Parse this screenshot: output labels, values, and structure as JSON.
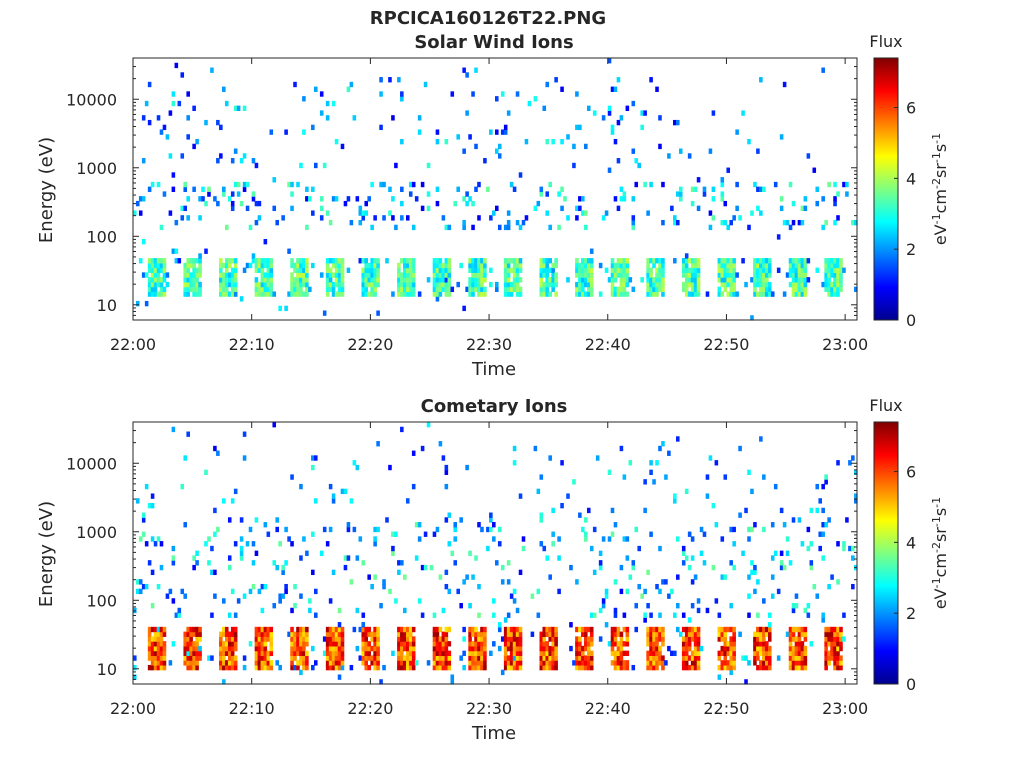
{
  "figure_title": "RPCICA160126T22.PNG",
  "chart_data": [
    {
      "type": "heatmap",
      "title": "Solar Wind Ions",
      "xlabel": "Time",
      "ylabel": "Energy (eV)",
      "x_tick_labels": [
        "22:00",
        "22:10",
        "22:20",
        "22:30",
        "22:40",
        "22:50",
        "23:00"
      ],
      "xlim_minutes": [
        0,
        61
      ],
      "x_tick_minutes": [
        0,
        10,
        20,
        30,
        40,
        50,
        60
      ],
      "y_scale": "log",
      "y_ticks": [
        10,
        100,
        1000,
        10000
      ],
      "y_tick_labels": [
        "10",
        "100",
        "1000",
        "10000"
      ],
      "ylim": [
        6,
        40000
      ],
      "colorbar": {
        "title": "Flux",
        "label": "eV-1cm-2sr-1s-1",
        "label_parts": [
          [
            "eV",
            ""
          ],
          [
            "-1",
            "sup"
          ],
          [
            "cm",
            ""
          ],
          [
            "-2",
            "sup"
          ],
          [
            "sr",
            ""
          ],
          [
            "-1",
            "sup"
          ],
          [
            "s",
            ""
          ],
          [
            "-1",
            "sup"
          ]
        ],
        "ticks": [
          0,
          2,
          4,
          6
        ],
        "tick_labels": [
          "0",
          "2",
          "4",
          "6"
        ],
        "range": [
          0,
          7.4
        ],
        "colormap": "jet"
      },
      "pattern": {
        "seed": 7,
        "low_band": [
          13,
          45
        ],
        "low_flux": [
          2.3,
          4.2
        ],
        "mid_band": [
          120,
          600
        ],
        "high_band": [
          1000,
          20000
        ],
        "high_cutoff_minute": 47,
        "density": 0.55
      },
      "x_grid": false,
      "y_grid": false
    },
    {
      "type": "heatmap",
      "title": "Cometary Ions",
      "xlabel": "Time",
      "ylabel": "Energy (eV)",
      "x_tick_labels": [
        "22:00",
        "22:10",
        "22:20",
        "22:30",
        "22:40",
        "22:50",
        "23:00"
      ],
      "xlim_minutes": [
        0,
        61
      ],
      "x_tick_minutes": [
        0,
        10,
        20,
        30,
        40,
        50,
        60
      ],
      "y_scale": "log",
      "y_ticks": [
        10,
        100,
        1000,
        10000
      ],
      "y_tick_labels": [
        "10",
        "100",
        "1000",
        "10000"
      ],
      "ylim": [
        6,
        40000
      ],
      "colorbar": {
        "title": "Flux",
        "label": "eV-1cm-2sr-1s-1",
        "label_parts": [
          [
            "eV",
            ""
          ],
          [
            "-1",
            "sup"
          ],
          [
            "cm",
            ""
          ],
          [
            "-2",
            "sup"
          ],
          [
            "sr",
            ""
          ],
          [
            "-1",
            "sup"
          ],
          [
            "s",
            ""
          ],
          [
            "-1",
            "sup"
          ]
        ],
        "ticks": [
          0,
          2,
          4,
          6
        ],
        "tick_labels": [
          "0",
          "2",
          "4",
          "6"
        ],
        "range": [
          0,
          7.4
        ],
        "colormap": "jet"
      },
      "pattern": {
        "seed": 19,
        "low_band": [
          9,
          42
        ],
        "low_flux": [
          4.8,
          7.2
        ],
        "mid_band": [
          60,
          1500
        ],
        "high_band": [
          1500,
          12000
        ],
        "high_cutoff_minute": 61,
        "density": 0.35
      },
      "x_grid": false,
      "y_grid": false
    }
  ]
}
